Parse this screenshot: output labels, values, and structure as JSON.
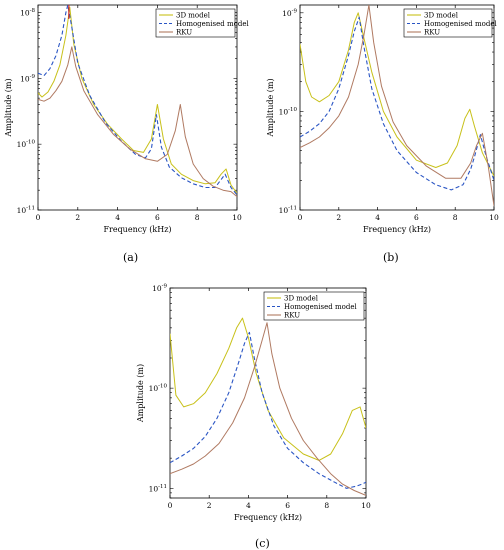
{
  "panels": [
    {
      "label": "(a)"
    },
    {
      "label": "(b)"
    },
    {
      "label": "(c)"
    }
  ],
  "colors": {
    "model3d": "#c8c11a",
    "homogenised": "#2a55c4",
    "rku": "#b07a62",
    "red_marker": "#d02020"
  },
  "chart_data": [
    {
      "type": "line",
      "panel": "(a)",
      "xlabel": "Frequency (kHz)",
      "ylabel": "Amplitude (m)",
      "xlim": [
        0,
        10
      ],
      "ylim": [
        1e-11,
        1.3e-08
      ],
      "yscale": "log",
      "xticks": [
        "0",
        "2",
        "4",
        "6",
        "8",
        "10"
      ],
      "yticks": [
        "10^-11",
        "10^-10",
        "10^-9",
        "10^-8"
      ],
      "legend_position": "top-right",
      "series": [
        {
          "name": "3D model",
          "style": "solid",
          "color": "#c8c11a",
          "x": [
            0,
            0.2,
            0.5,
            0.8,
            1.1,
            1.4,
            1.6,
            1.8,
            2.2,
            2.8,
            3.5,
            4.2,
            4.8,
            5.3,
            5.7,
            6.0,
            6.3,
            6.7,
            7.2,
            7.8,
            8.4,
            8.9,
            9.2,
            9.45,
            9.7,
            10.0
          ],
          "y": [
            6e-10,
            5.2e-10,
            6.2e-10,
            9e-10,
            1.6e-09,
            4.5e-09,
            1.2e-08,
            3.3e-09,
            1e-09,
            4e-10,
            2e-10,
            1.2e-10,
            8e-11,
            7.5e-11,
            1.2e-10,
            4e-10,
            1.2e-10,
            5e-11,
            3.5e-11,
            2.8e-11,
            2.5e-11,
            2.6e-11,
            3.5e-11,
            4.2e-11,
            2.4e-11,
            1.8e-11
          ]
        },
        {
          "name": "Homogenised model",
          "style": "dashed",
          "color": "#2a55c4",
          "x": [
            0,
            0.3,
            0.6,
            0.9,
            1.2,
            1.4,
            1.5,
            1.7,
            2.0,
            2.6,
            3.4,
            4.2,
            4.9,
            5.4,
            5.7,
            5.95,
            6.2,
            6.6,
            7.2,
            7.8,
            8.4,
            8.9,
            9.2,
            9.4,
            9.7,
            10.0
          ],
          "y": [
            1.2e-09,
            1.1e-09,
            1.4e-09,
            2.2e-09,
            4.5e-09,
            1e-08,
            1.3e-08,
            6e-09,
            1.7e-09,
            5.5e-10,
            2.1e-10,
            1.1e-10,
            7e-11,
            6.2e-11,
            8.5e-11,
            2.8e-10,
            9e-11,
            4.5e-11,
            3.1e-11,
            2.5e-11,
            2.2e-11,
            2.2e-11,
            2.9e-11,
            3.5e-11,
            2.2e-11,
            1.7e-11
          ]
        },
        {
          "name": "RKU",
          "style": "solid",
          "color": "#b07a62",
          "x": [
            0,
            0.3,
            0.6,
            0.9,
            1.2,
            1.5,
            1.7,
            1.9,
            2.3,
            3.0,
            3.8,
            4.6,
            5.4,
            6.0,
            6.5,
            6.9,
            7.15,
            7.4,
            7.8,
            8.3,
            8.8,
            9.3,
            9.7,
            10.0
          ],
          "y": [
            4.8e-10,
            4.5e-10,
            5e-10,
            6.5e-10,
            9e-10,
            1.6e-09,
            3e-09,
            1.5e-09,
            6.5e-10,
            2.8e-10,
            1.4e-10,
            8.5e-11,
            6e-11,
            5.5e-11,
            7e-11,
            1.6e-10,
            4e-10,
            1.3e-10,
            5e-11,
            3e-11,
            2.3e-11,
            2e-11,
            1.9e-11,
            1.6e-11
          ]
        }
      ]
    },
    {
      "type": "line",
      "panel": "(b)",
      "xlabel": "Frequency (kHz)",
      "ylabel": "Amplitude (m)",
      "xlim": [
        0,
        10
      ],
      "ylim": [
        1e-11,
        1.2e-09
      ],
      "yscale": "log",
      "xticks": [
        "0",
        "2",
        "4",
        "6",
        "8",
        "10"
      ],
      "yticks": [
        "10^-11",
        "10^-10",
        "10^-9"
      ],
      "legend_position": "top-right",
      "series": [
        {
          "name": "3D model",
          "style": "solid",
          "color": "#c8c11a",
          "x": [
            0,
            0.3,
            0.6,
            1.0,
            1.5,
            2.0,
            2.5,
            2.8,
            3.0,
            3.3,
            3.7,
            4.3,
            5.0,
            6.0,
            7.0,
            7.6,
            8.1,
            8.5,
            8.75,
            9.0,
            9.4,
            10.0
          ],
          "y": [
            4.8e-10,
            2e-10,
            1.4e-10,
            1.25e-10,
            1.45e-10,
            2e-10,
            4.2e-10,
            8e-10,
            1e-09,
            5.5e-10,
            2.5e-10,
            1e-10,
            5.5e-11,
            3.2e-11,
            2.7e-11,
            3e-11,
            4.5e-11,
            8.5e-11,
            1.05e-10,
            7e-11,
            3.8e-11,
            2.2e-11
          ]
        },
        {
          "name": "Homogenised model",
          "style": "dashed",
          "color": "#2a55c4",
          "x": [
            0,
            0.5,
            1.0,
            1.5,
            2.0,
            2.5,
            2.8,
            3.05,
            3.3,
            3.7,
            4.3,
            5.0,
            6.0,
            7.0,
            7.8,
            8.4,
            8.8,
            9.0,
            9.3,
            9.6,
            10.0
          ],
          "y": [
            5.5e-11,
            6.3e-11,
            7.5e-11,
            1e-10,
            1.7e-10,
            3.7e-10,
            6.5e-10,
            9e-10,
            4.5e-10,
            1.7e-10,
            7.5e-11,
            4e-11,
            2.4e-11,
            1.8e-11,
            1.6e-11,
            1.8e-11,
            2.6e-11,
            3.5e-11,
            5.8e-11,
            3.5e-11,
            2e-11
          ]
        },
        {
          "name": "RKU",
          "style": "solid",
          "color": "#b07a62",
          "x": [
            0,
            0.5,
            1.0,
            1.5,
            2.0,
            2.5,
            3.0,
            3.3,
            3.55,
            3.8,
            4.2,
            4.8,
            5.5,
            6.5,
            7.5,
            8.3,
            8.8,
            9.1,
            9.4,
            9.7,
            10.0
          ],
          "y": [
            4.3e-11,
            4.8e-11,
            5.5e-11,
            6.8e-11,
            9e-11,
            1.4e-10,
            3e-10,
            6e-10,
            1.2e-09,
            5e-10,
            1.8e-10,
            7.8e-11,
            4.5e-11,
            2.8e-11,
            2.1e-11,
            2.1e-11,
            3e-11,
            4.5e-11,
            6e-11,
            2.8e-11,
            1.1e-11
          ]
        }
      ]
    },
    {
      "type": "line",
      "panel": "(c)",
      "xlabel": "Frequency (kHz)",
      "ylabel": "Amplitude (m)",
      "xlim": [
        0,
        10
      ],
      "ylim": [
        8e-12,
        1e-09
      ],
      "yscale": "log",
      "xticks": [
        "0",
        "2",
        "4",
        "6",
        "8",
        "10"
      ],
      "yticks": [
        "10^-11",
        "10^-10",
        "10^-9"
      ],
      "legend_position": "top-right",
      "series": [
        {
          "name": "3D model",
          "style": "solid",
          "color": "#c8c11a",
          "x": [
            0,
            0.3,
            0.7,
            1.2,
            1.8,
            2.4,
            3.0,
            3.4,
            3.7,
            4.0,
            4.4,
            5.0,
            5.8,
            6.8,
            7.6,
            8.2,
            8.8,
            9.3,
            9.7,
            10.0
          ],
          "y": [
            3.5e-10,
            8.5e-11,
            6.5e-11,
            7e-11,
            9e-11,
            1.4e-10,
            2.5e-10,
            4e-10,
            5e-10,
            3.2e-10,
            1.4e-10,
            6e-11,
            3.2e-11,
            2.2e-11,
            1.9e-11,
            2.2e-11,
            3.5e-11,
            6e-11,
            6.5e-11,
            4e-11
          ]
        },
        {
          "name": "Homogenised model",
          "style": "dashed",
          "color": "#2a55c4",
          "x": [
            0,
            0.6,
            1.2,
            1.8,
            2.4,
            3.0,
            3.5,
            3.8,
            4.05,
            4.3,
            4.7,
            5.3,
            6.0,
            6.8,
            7.6,
            8.4,
            9.0,
            9.5,
            9.8,
            10.0
          ],
          "y": [
            1.8e-11,
            2.1e-11,
            2.5e-11,
            3.3e-11,
            5e-11,
            9e-11,
            1.8e-10,
            2.8e-10,
            3.6e-10,
            2e-10,
            9e-11,
            4.2e-11,
            2.5e-11,
            1.8e-11,
            1.4e-11,
            1.15e-11,
            1e-11,
            1.05e-11,
            1.1e-11,
            1.15e-11
          ]
        },
        {
          "name": "RKU",
          "style": "solid",
          "color": "#b07a62",
          "x": [
            0,
            0.6,
            1.2,
            1.8,
            2.5,
            3.2,
            3.8,
            4.3,
            4.7,
            4.95,
            5.2,
            5.6,
            6.2,
            6.8,
            7.5,
            8.2,
            8.8,
            9.4,
            10.0
          ],
          "y": [
            1.4e-11,
            1.55e-11,
            1.75e-11,
            2.1e-11,
            2.8e-11,
            4.5e-11,
            8e-11,
            1.6e-10,
            3e-10,
            4.5e-10,
            2.2e-10,
            1e-10,
            5e-11,
            3e-11,
            2e-11,
            1.4e-11,
            1.1e-11,
            9.5e-12,
            8.5e-12
          ]
        }
      ]
    }
  ]
}
